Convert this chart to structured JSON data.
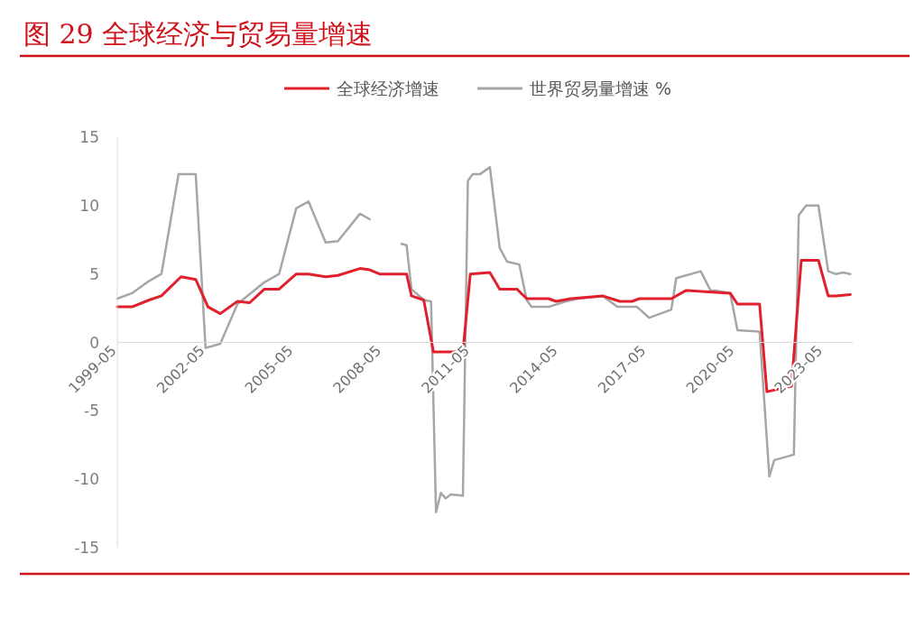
{
  "chart_data": {
    "type": "line",
    "title": "图 29   全球经济与贸易量增速",
    "series": [
      {
        "name": "全球经济增速",
        "color": "#e0202c",
        "x": [
          "1999-05",
          "1999-11",
          "2000-06",
          "2000-11",
          "2001-07",
          "2002-01",
          "2002-06",
          "2002-11",
          "2003-06",
          "2003-11",
          "2004-05",
          "2004-11",
          "2005-06",
          "2005-11",
          "2006-06",
          "2006-11",
          "2007-08",
          "2007-12",
          "2008-04",
          "2009-03",
          "2009-05",
          "2009-10",
          "2010-02",
          "2011-02",
          "2011-05",
          "2012-01",
          "2012-05",
          "2012-12",
          "2013-04",
          "2014-01",
          "2014-04",
          "2014-10",
          "2015-11",
          "2016-06",
          "2016-11",
          "2017-02",
          "2018-03",
          "2018-09",
          "2020-03",
          "2020-06",
          "2021-03",
          "2021-06",
          "2022-04",
          "2022-08",
          "2023-03",
          "2023-07",
          "2023-10",
          "2024-04"
        ],
        "values": [
          2.6,
          2.6,
          3.1,
          3.4,
          4.8,
          4.6,
          2.6,
          2.1,
          3.0,
          2.9,
          3.9,
          3.9,
          5.0,
          5.0,
          4.8,
          4.9,
          5.4,
          5.3,
          5.0,
          5.0,
          3.4,
          3.1,
          -0.7,
          -0.7,
          5.0,
          5.1,
          3.9,
          3.9,
          3.2,
          3.2,
          3.0,
          3.2,
          3.4,
          3.0,
          3.0,
          3.2,
          3.2,
          3.8,
          3.6,
          2.8,
          2.8,
          -3.6,
          -3.2,
          6.0,
          6.0,
          3.4,
          3.4,
          3.5
        ]
      },
      {
        "name": "世界贸易量增速 %",
        "color": "#a6a6a6",
        "x": [
          "1999-05",
          "1999-11",
          "2000-06",
          "2000-11",
          "2001-06",
          "2002-01",
          "2002-05",
          "2002-11",
          "2003-06",
          "2004-05",
          "2004-11",
          "2005-06",
          "2005-11",
          "2006-06",
          "2006-11",
          "2007-08",
          "2007-12",
          "2008-06",
          "2009-01",
          "2009-03",
          "2009-05",
          "2009-10",
          "2010-01",
          "2010-03",
          "2010-05",
          "2010-07",
          "2010-09",
          "2011-02",
          "2011-04",
          "2011-06",
          "2011-09",
          "2012-01",
          "2012-05",
          "2012-08",
          "2013-01",
          "2013-04",
          "2013-06",
          "2014-01",
          "2014-08",
          "2015-01",
          "2015-11",
          "2016-05",
          "2016-11",
          "2017-01",
          "2017-06",
          "2018-03",
          "2018-05",
          "2019-03",
          "2019-07",
          "2019-09",
          "2020-03",
          "2020-06",
          "2021-03",
          "2021-07",
          "2021-09",
          "2022-03",
          "2022-05",
          "2022-07",
          "2022-10",
          "2023-03",
          "2023-07",
          "2023-10",
          "2024-01",
          "2024-04"
        ],
        "values": [
          3.2,
          3.6,
          4.5,
          5.0,
          12.3,
          12.3,
          -0.4,
          -0.1,
          2.8,
          4.4,
          5.0,
          9.8,
          10.3,
          7.3,
          7.4,
          9.4,
          9.0,
          null,
          7.2,
          7.1,
          3.9,
          3.1,
          3.0,
          -12.4,
          -11.0,
          -11.4,
          -11.1,
          -11.2,
          11.8,
          12.3,
          12.3,
          12.8,
          6.9,
          5.9,
          5.7,
          3.1,
          2.6,
          2.6,
          3.0,
          3.2,
          3.4,
          2.6,
          2.6,
          2.6,
          1.8,
          2.4,
          4.7,
          5.2,
          3.8,
          3.8,
          3.6,
          0.9,
          0.8,
          -9.8,
          -8.6,
          -8.3,
          -8.2,
          9.3,
          10.0,
          10.0,
          5.2,
          5.0,
          5.1,
          5.0
        ]
      }
    ],
    "xlim": [
      "1999-05",
      "2024-05"
    ],
    "xticks": [
      "1999-05",
      "2002-05",
      "2005-05",
      "2008-05",
      "2011-05",
      "2014-05",
      "2017-05",
      "2020-05",
      "2023-05"
    ],
    "ylim": [
      -15,
      15
    ],
    "yticks": [
      -15,
      -10,
      -5,
      0,
      5,
      10,
      15
    ],
    "legend": "top"
  }
}
